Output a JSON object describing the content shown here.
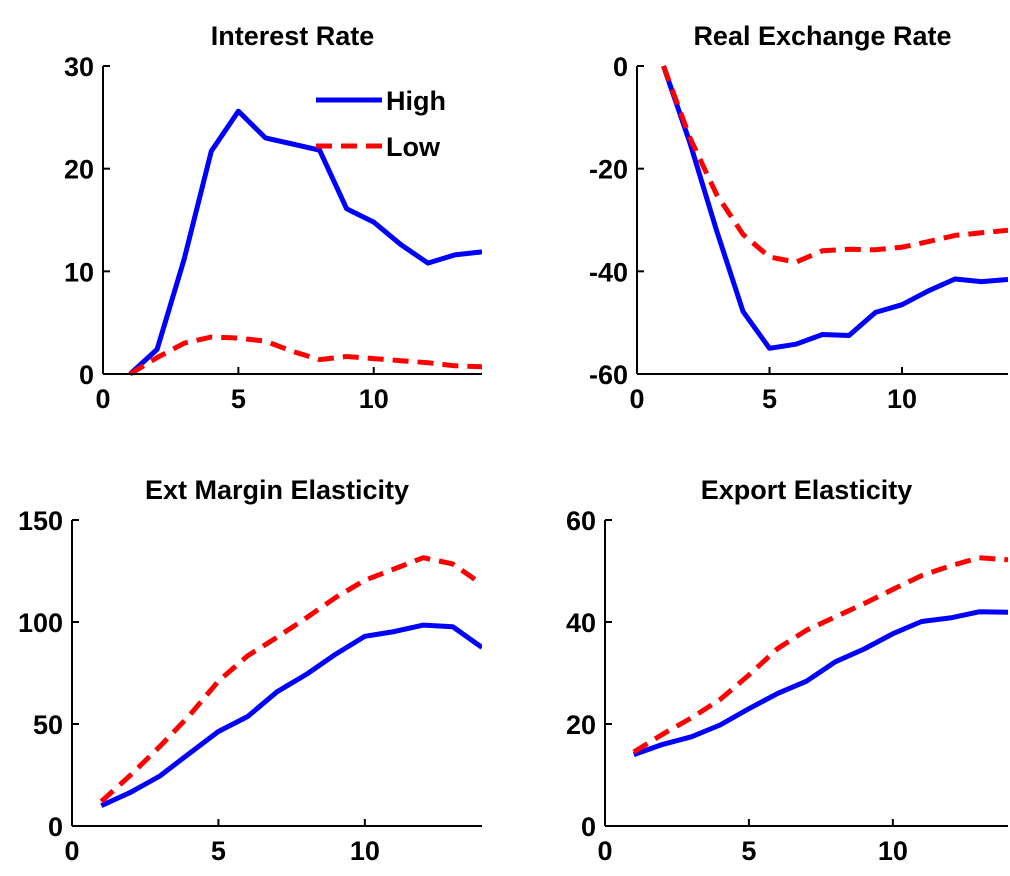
{
  "chart_data": [
    {
      "type": "line",
      "title": "Interest Rate",
      "xlabel": "",
      "ylabel": "",
      "xlim": [
        0,
        14
      ],
      "ylim": [
        0,
        30
      ],
      "xticks": [
        0,
        5,
        10
      ],
      "yticks": [
        0,
        10,
        20,
        30
      ],
      "grid": false,
      "legend": {
        "placement": "top-right",
        "entries": [
          "High",
          "Low"
        ]
      },
      "x": [
        1,
        2,
        3,
        4,
        5,
        6,
        7,
        8,
        9,
        10,
        11,
        12,
        13,
        14
      ],
      "series": [
        {
          "name": "High",
          "color": "#0000ff",
          "style": "solid",
          "values": [
            0,
            2.4,
            11.2,
            21.7,
            25.6,
            23.0,
            22.4,
            21.8,
            16.1,
            14.8,
            12.6,
            10.8,
            11.6,
            11.9
          ]
        },
        {
          "name": "Low",
          "color": "#ff0000",
          "style": "dashed",
          "values": [
            0,
            1.6,
            3.0,
            3.6,
            3.5,
            3.2,
            2.2,
            1.4,
            1.7,
            1.5,
            1.3,
            1.1,
            0.8,
            0.7
          ]
        }
      ]
    },
    {
      "type": "line",
      "title": "Real Exchange Rate",
      "xlabel": "",
      "ylabel": "",
      "xlim": [
        0,
        14
      ],
      "ylim": [
        -60,
        0
      ],
      "xticks": [
        0,
        5,
        10
      ],
      "yticks": [
        -60,
        -40,
        -20,
        0
      ],
      "grid": false,
      "x": [
        1,
        2,
        3,
        4,
        5,
        6,
        7,
        8,
        9,
        10,
        11,
        12,
        13,
        14
      ],
      "series": [
        {
          "name": "High",
          "color": "#0000ff",
          "style": "solid",
          "values": [
            0,
            -15.0,
            -32.0,
            -47.8,
            -55.0,
            -54.2,
            -52.3,
            -52.5,
            -48.0,
            -46.5,
            -43.8,
            -41.5,
            -42.0,
            -41.6
          ]
        },
        {
          "name": "Low",
          "color": "#ff0000",
          "style": "dashed",
          "values": [
            0,
            -14.0,
            -25.0,
            -32.8,
            -37.2,
            -38.2,
            -36.0,
            -35.7,
            -35.8,
            -35.3,
            -34.2,
            -33.0,
            -32.5,
            -32.0
          ]
        }
      ]
    },
    {
      "type": "line",
      "title": "Ext Margin Elasticity",
      "xlabel": "",
      "ylabel": "",
      "xlim": [
        0,
        14
      ],
      "ylim": [
        0,
        150
      ],
      "xticks": [
        0,
        5,
        10
      ],
      "yticks": [
        0,
        50,
        100,
        150
      ],
      "grid": false,
      "x": [
        1,
        2,
        3,
        4,
        5,
        6,
        7,
        8,
        9,
        10,
        11,
        12,
        13,
        14
      ],
      "series": [
        {
          "name": "High",
          "color": "#0000ff",
          "style": "solid",
          "values": [
            10,
            16.5,
            24.5,
            35.5,
            46.3,
            53.7,
            65.8,
            74.3,
            84.2,
            93.0,
            95.3,
            98.5,
            97.7,
            87.5
          ]
        },
        {
          "name": "Low",
          "color": "#ff0000",
          "style": "dashed",
          "values": [
            12,
            25.0,
            39.0,
            54.0,
            71.0,
            83.5,
            92.5,
            102.0,
            112.0,
            120.5,
            126.0,
            131.5,
            128.5,
            118.5
          ]
        }
      ]
    },
    {
      "type": "line",
      "title": "Export Elasticity",
      "xlabel": "",
      "ylabel": "",
      "xlim": [
        0,
        14
      ],
      "ylim": [
        0,
        60
      ],
      "xticks": [
        0,
        5,
        10
      ],
      "yticks": [
        0,
        20,
        40,
        60
      ],
      "grid": false,
      "x": [
        1,
        2,
        3,
        4,
        5,
        6,
        7,
        8,
        9,
        10,
        11,
        12,
        13,
        14
      ],
      "series": [
        {
          "name": "High",
          "color": "#0000ff",
          "style": "solid",
          "values": [
            14,
            16.0,
            17.5,
            19.8,
            23.0,
            26.0,
            28.4,
            32.2,
            34.7,
            37.7,
            40.1,
            40.8,
            42.0,
            41.9
          ]
        },
        {
          "name": "Low",
          "color": "#ff0000",
          "style": "dashed",
          "values": [
            14.5,
            18.0,
            21.2,
            24.8,
            29.6,
            34.8,
            38.4,
            41.0,
            43.6,
            46.4,
            49.1,
            51.0,
            52.6,
            52.2
          ]
        }
      ]
    }
  ]
}
